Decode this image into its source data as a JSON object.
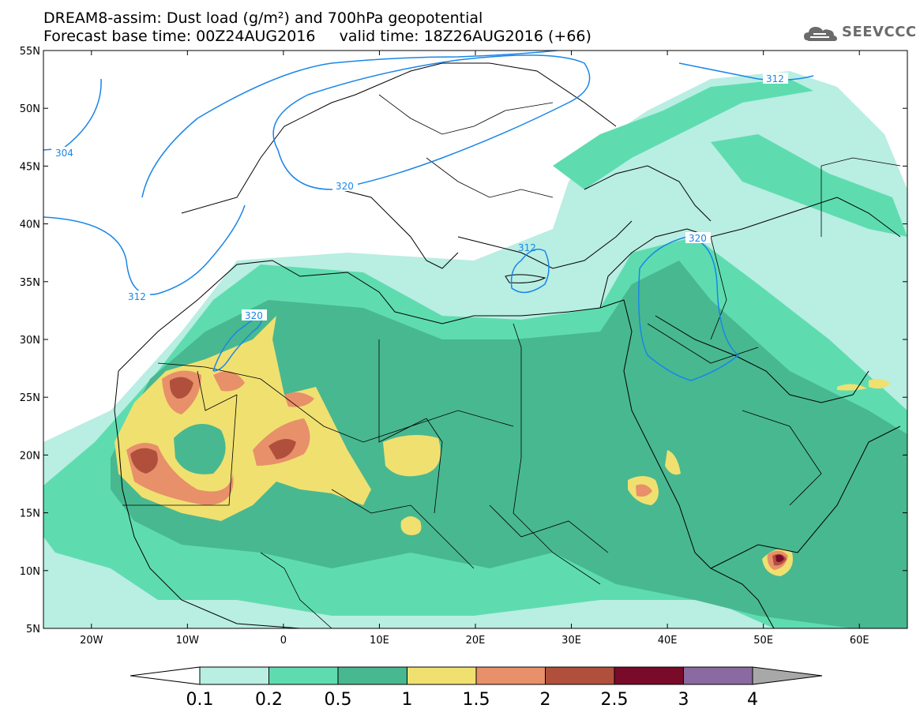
{
  "header": {
    "line1": "DREAM8-assim: Dust load (g/m²) and 700hPa geopotential",
    "line2": "Forecast base time: 00Z24AUG2016     valid time: 18Z26AUG2016 (+66)"
  },
  "logo": {
    "text": "SEEVCCC",
    "icon": "cloud-icon"
  },
  "map": {
    "lon_range": [
      -25,
      65
    ],
    "lat_range": [
      5,
      55
    ],
    "lat_ticks": [
      "5N",
      "10N",
      "15N",
      "20N",
      "25N",
      "30N",
      "35N",
      "40N",
      "45N",
      "50N",
      "55N"
    ],
    "lon_ticks": [
      "20W",
      "10W",
      "0",
      "10E",
      "20E",
      "30E",
      "40E",
      "50E",
      "60E"
    ],
    "geopotential_labels": [
      "304",
      "312",
      "320",
      "320",
      "312",
      "312",
      "320"
    ]
  },
  "colorbar": {
    "labels": [
      "0.1",
      "0.2",
      "0.5",
      "1",
      "1.5",
      "2",
      "2.5",
      "3",
      "4"
    ],
    "colors": [
      "#b9eee2",
      "#5edcb0",
      "#48b890",
      "#f0e070",
      "#e8906a",
      "#b0503c",
      "#7a0a2a",
      "#8a6aa0",
      "#a8a8a8"
    ]
  }
}
